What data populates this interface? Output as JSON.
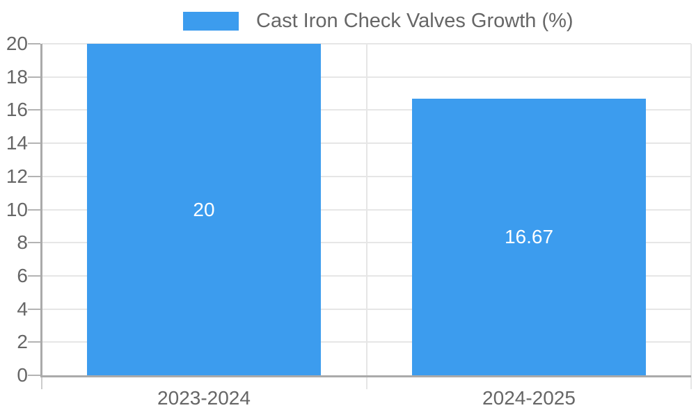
{
  "chart": {
    "legend": {
      "label": "Cast Iron Check Valves Growth (%)"
    },
    "colors": {
      "bar": "#3c9cee",
      "axis_label": "#666666",
      "legend_label": "#666666",
      "grid_line": "#e6e6e6",
      "axis_line": "#aaaaaa",
      "tick_mark": "#b3b3b3",
      "minor_tick": "#cccccc",
      "value_label": "#ffffff",
      "background": "#ffffff"
    }
  },
  "chart_data": {
    "type": "bar",
    "title": "",
    "legend": "Cast Iron Check Valves Growth (%)",
    "legend_position": "top-center",
    "categories": [
      "2023-2024",
      "2024-2025"
    ],
    "values": [
      20,
      16.67
    ],
    "value_labels": [
      "20",
      "16.67"
    ],
    "value_label_position": "inside-center",
    "xlabel": "",
    "ylabel": "",
    "ylim": [
      0,
      20
    ],
    "ytick_step": 2,
    "ytick_labels": [
      "0",
      "2",
      "4",
      "6",
      "8",
      "10",
      "12",
      "14",
      "16",
      "18",
      "20"
    ],
    "grid": true
  }
}
